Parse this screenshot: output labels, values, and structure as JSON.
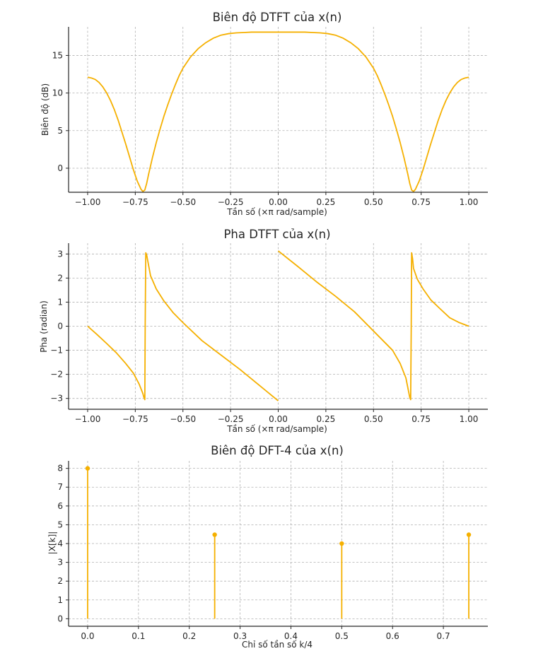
{
  "theme": {
    "line_color": "#f5b000"
  },
  "chart_data": [
    {
      "type": "line",
      "title": "Biên độ DTFT của x(n)",
      "xlabel": "Tần số (×π rad/sample)",
      "ylabel": "Biên độ (dB)",
      "xlim": [
        -1.1,
        1.1
      ],
      "ylim": [
        -3.2,
        18.8
      ],
      "xticks": [
        -1.0,
        -0.75,
        -0.5,
        -0.25,
        0.0,
        0.25,
        0.5,
        0.75,
        1.0
      ],
      "xtick_labels": [
        "−1.00",
        "−0.75",
        "−0.50",
        "−0.25",
        "0.00",
        "0.25",
        "0.50",
        "0.75",
        "1.00"
      ],
      "yticks": [
        0,
        5,
        10,
        15
      ],
      "ytick_labels": [
        "0",
        "5",
        "10",
        "15"
      ],
      "grid": true,
      "series": [
        {
          "x": [
            -1.0,
            -0.98,
            -0.96,
            -0.94,
            -0.92,
            -0.9,
            -0.88,
            -0.86,
            -0.84,
            -0.82,
            -0.8,
            -0.78,
            -0.76,
            -0.74,
            -0.72,
            -0.71,
            -0.7,
            -0.69,
            -0.68,
            -0.66,
            -0.64,
            -0.62,
            -0.6,
            -0.58,
            -0.56,
            -0.54,
            -0.52,
            -0.5,
            -0.46,
            -0.42,
            -0.38,
            -0.34,
            -0.3,
            -0.26,
            -0.22,
            -0.18,
            -0.14,
            -0.1,
            -0.06,
            -0.02,
            0.02,
            0.06,
            0.1,
            0.14,
            0.18,
            0.22,
            0.26,
            0.3,
            0.34,
            0.38,
            0.42,
            0.46,
            0.5,
            0.52,
            0.54,
            0.56,
            0.58,
            0.6,
            0.62,
            0.64,
            0.66,
            0.68,
            0.69,
            0.7,
            0.71,
            0.72,
            0.74,
            0.76,
            0.78,
            0.8,
            0.82,
            0.84,
            0.86,
            0.88,
            0.9,
            0.92,
            0.94,
            0.96,
            0.98,
            1.0
          ],
          "y": [
            12.1,
            12.0,
            11.8,
            11.4,
            10.8,
            10.0,
            9.0,
            7.8,
            6.4,
            4.8,
            3.2,
            1.5,
            -0.2,
            -1.7,
            -2.8,
            -3.1,
            -2.9,
            -2.0,
            -0.8,
            1.4,
            3.4,
            5.2,
            6.9,
            8.4,
            9.8,
            11.1,
            12.3,
            13.3,
            14.8,
            15.9,
            16.7,
            17.3,
            17.7,
            17.9,
            18.0,
            18.05,
            18.1,
            18.1,
            18.1,
            18.1,
            18.1,
            18.1,
            18.1,
            18.1,
            18.05,
            18.0,
            17.9,
            17.7,
            17.3,
            16.7,
            15.9,
            14.8,
            13.3,
            12.3,
            11.1,
            9.8,
            8.4,
            6.9,
            5.2,
            3.4,
            1.4,
            -0.8,
            -2.0,
            -2.9,
            -3.1,
            -2.8,
            -1.7,
            -0.2,
            1.5,
            3.2,
            4.8,
            6.4,
            7.8,
            9.0,
            10.0,
            10.8,
            11.4,
            11.8,
            12.0,
            12.1
          ]
        }
      ]
    },
    {
      "type": "line",
      "title": "Pha DTFT của x(n)",
      "xlabel": "Tần số (×π rad/sample)",
      "ylabel": "Pha (radian)",
      "xlim": [
        -1.1,
        1.1
      ],
      "ylim": [
        -3.45,
        3.45
      ],
      "xticks": [
        -1.0,
        -0.75,
        -0.5,
        -0.25,
        0.0,
        0.25,
        0.5,
        0.75,
        1.0
      ],
      "xtick_labels": [
        "−1.00",
        "−0.75",
        "−0.50",
        "−0.25",
        "0.00",
        "0.25",
        "0.50",
        "0.75",
        "1.00"
      ],
      "yticks": [
        -3,
        -2,
        -1,
        0,
        1,
        2,
        3
      ],
      "ytick_labels": [
        "−3",
        "−2",
        "−1",
        "0",
        "1",
        "2",
        "3"
      ],
      "grid": true,
      "series": [
        {
          "x": [
            -1.0,
            -0.95,
            -0.9,
            -0.85,
            -0.8,
            -0.76,
            -0.73,
            -0.71,
            -0.705,
            -0.7,
            -0.698,
            -0.695,
            -0.69,
            -0.67,
            -0.64,
            -0.6,
            -0.55,
            -0.5,
            -0.4,
            -0.3,
            -0.2,
            -0.1,
            0.0,
            0.0,
            0.1,
            0.2,
            0.3,
            0.4,
            0.5,
            0.55,
            0.6,
            0.64,
            0.67,
            0.69,
            0.695,
            0.698,
            0.7,
            0.705,
            0.71,
            0.73,
            0.76,
            0.8,
            0.85,
            0.9,
            0.95,
            1.0
          ],
          "y": [
            0.0,
            -0.35,
            -0.72,
            -1.1,
            -1.55,
            -1.95,
            -2.4,
            -2.8,
            -2.95,
            -3.05,
            0.0,
            3.05,
            2.95,
            2.1,
            1.55,
            1.05,
            0.55,
            0.15,
            -0.6,
            -1.2,
            -1.8,
            -2.45,
            -3.1,
            3.13,
            2.5,
            1.85,
            1.25,
            0.6,
            -0.2,
            -0.6,
            -1.0,
            -1.55,
            -2.15,
            -2.95,
            -3.05,
            0.0,
            3.05,
            2.8,
            2.4,
            1.95,
            1.55,
            1.1,
            0.72,
            0.35,
            0.15,
            0.0
          ]
        }
      ]
    },
    {
      "type": "bar",
      "title": "Biên độ DFT-4 của x(n)",
      "xlabel": "Chỉ số tần số k/4",
      "ylabel": "|X[k]|",
      "xlim": [
        -0.0375,
        0.7875
      ],
      "ylim": [
        -0.4,
        8.4
      ],
      "xticks": [
        0.0,
        0.1,
        0.2,
        0.3,
        0.4,
        0.5,
        0.6,
        0.7
      ],
      "xtick_labels": [
        "0.0",
        "0.1",
        "0.2",
        "0.3",
        "0.4",
        "0.5",
        "0.6",
        "0.7"
      ],
      "yticks": [
        0,
        1,
        2,
        3,
        4,
        5,
        6,
        7,
        8
      ],
      "ytick_labels": [
        "0",
        "1",
        "2",
        "3",
        "4",
        "5",
        "6",
        "7",
        "8"
      ],
      "grid": true,
      "x": [
        0.0,
        0.25,
        0.5,
        0.75
      ],
      "values": [
        8.0,
        4.47,
        4.0,
        4.47
      ]
    }
  ]
}
